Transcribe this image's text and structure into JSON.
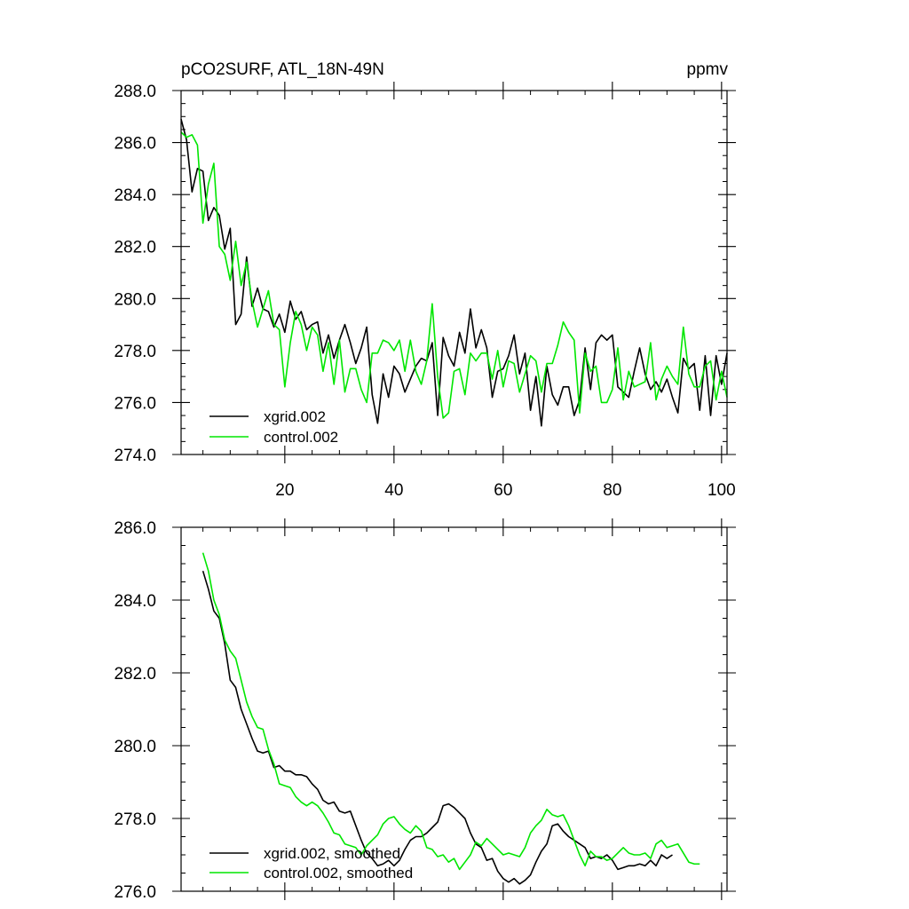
{
  "chart_data": [
    {
      "type": "line",
      "title": "pCO2SURF, ATL_18N-49N",
      "units": "ppmv",
      "xlabel": "",
      "ylabel": "",
      "xlim": [
        1,
        101
      ],
      "ylim": [
        274.0,
        288.0
      ],
      "xticks": [
        20,
        40,
        60,
        80,
        100
      ],
      "yticks": [
        274.0,
        276.0,
        278.0,
        280.0,
        282.0,
        284.0,
        286.0,
        288.0
      ],
      "ytick_labels": [
        "274.0",
        "276.0",
        "278.0",
        "280.0",
        "282.0",
        "284.0",
        "286.0",
        "288.0"
      ],
      "x_start": 1,
      "legend_position": "bottom-left",
      "series": [
        {
          "name": "xgrid.002",
          "color": "#000000",
          "values": [
            286.9,
            286.1,
            284.1,
            285.0,
            284.9,
            283.0,
            283.5,
            283.2,
            281.9,
            282.7,
            279.0,
            279.4,
            281.6,
            279.7,
            280.4,
            279.6,
            279.5,
            278.9,
            279.4,
            278.7,
            279.9,
            279.2,
            279.5,
            278.8,
            279.0,
            279.1,
            277.9,
            278.6,
            277.7,
            278.4,
            279.0,
            278.3,
            277.5,
            278.1,
            278.9,
            276.3,
            275.2,
            277.1,
            276.2,
            277.4,
            277.1,
            276.4,
            276.9,
            277.4,
            277.7,
            277.6,
            278.3,
            275.5,
            278.5,
            277.8,
            277.4,
            278.7,
            277.9,
            279.6,
            278.1,
            278.8,
            278.1,
            276.2,
            277.2,
            277.3,
            277.8,
            278.6,
            277.1,
            277.9,
            275.7,
            277.0,
            275.1,
            277.4,
            276.3,
            275.9,
            276.6,
            276.6,
            275.5,
            276.1,
            278.1,
            276.5,
            278.3,
            278.6,
            278.4,
            278.6,
            276.6,
            276.4,
            276.2,
            277.2,
            278.1,
            277.1,
            276.5,
            276.8,
            276.4,
            276.9,
            276.2,
            275.6,
            277.7,
            277.3,
            277.5,
            275.7,
            277.8,
            275.5,
            277.8,
            276.7,
            277.9
          ]
        },
        {
          "name": "control.002",
          "color": "#00e600",
          "values": [
            286.4,
            286.2,
            286.3,
            285.9,
            282.9,
            284.4,
            285.2,
            282.0,
            281.7,
            280.7,
            282.2,
            280.5,
            281.4,
            279.9,
            278.9,
            279.6,
            280.3,
            279.0,
            278.8,
            276.6,
            278.3,
            279.5,
            279.0,
            278.0,
            278.9,
            278.6,
            277.2,
            278.3,
            276.7,
            278.4,
            276.4,
            277.3,
            277.3,
            276.5,
            276.0,
            277.9,
            277.9,
            278.4,
            278.3,
            278.0,
            278.4,
            277.2,
            278.4,
            277.2,
            276.7,
            277.6,
            279.8,
            277.0,
            275.4,
            275.6,
            277.2,
            277.3,
            276.3,
            277.9,
            277.6,
            277.9,
            277.9,
            276.9,
            278.0,
            276.6,
            277.6,
            277.5,
            276.4,
            277.1,
            277.8,
            277.6,
            276.4,
            277.5,
            277.5,
            278.2,
            279.1,
            278.7,
            278.4,
            275.6,
            277.9,
            277.2,
            277.4,
            276.0,
            276.0,
            276.5,
            278.1,
            276.1,
            277.2,
            276.6,
            276.7,
            276.8,
            278.3,
            276.1,
            276.9,
            277.4,
            277.0,
            276.7,
            278.9,
            277.1,
            276.6,
            276.6,
            277.4,
            277.6,
            276.1,
            277.2,
            276.2
          ]
        }
      ]
    },
    {
      "type": "line",
      "title": "",
      "xlabel": "",
      "ylabel": "",
      "xlim": [
        1,
        101
      ],
      "ylim": [
        276.0,
        286.0
      ],
      "xticks": [
        20,
        40,
        60,
        80,
        100
      ],
      "yticks": [
        276.0,
        278.0,
        280.0,
        282.0,
        284.0,
        286.0
      ],
      "ytick_labels": [
        "276.0",
        "278.0",
        "280.0",
        "282.0",
        "284.0",
        "286.0"
      ],
      "x_start": 5,
      "legend_position": "bottom-left",
      "series": [
        {
          "name": "xgrid.002, smoothed",
          "color": "#000000",
          "values": [
            284.8,
            284.3,
            283.7,
            283.5,
            282.8,
            281.8,
            281.6,
            281.0,
            280.6,
            280.2,
            279.85,
            279.8,
            279.85,
            279.4,
            279.45,
            279.3,
            279.3,
            279.2,
            279.2,
            279.15,
            278.95,
            278.8,
            278.5,
            278.4,
            278.45,
            278.2,
            278.15,
            278.2,
            277.8,
            277.4,
            277.05,
            276.9,
            276.7,
            276.75,
            276.85,
            276.7,
            276.85,
            277.15,
            277.4,
            277.5,
            277.5,
            277.6,
            277.75,
            277.9,
            278.35,
            278.4,
            278.3,
            278.15,
            278.0,
            277.6,
            277.3,
            277.2,
            276.85,
            276.9,
            276.55,
            276.35,
            276.25,
            276.35,
            276.2,
            276.3,
            276.45,
            276.8,
            277.1,
            277.3,
            277.8,
            277.85,
            277.65,
            277.5,
            277.4,
            277.3,
            277.2,
            276.9,
            276.95,
            276.9,
            277.0,
            276.85,
            276.6,
            276.65,
            276.7,
            276.7,
            276.75,
            276.7,
            276.85,
            276.7,
            277.0,
            276.9,
            277.0
          ]
        },
        {
          "name": "control.002, smoothed",
          "color": "#00e600",
          "values": [
            285.3,
            284.8,
            284.0,
            283.6,
            282.9,
            282.6,
            282.4,
            281.8,
            281.2,
            280.8,
            280.5,
            280.45,
            279.9,
            279.5,
            278.95,
            278.9,
            278.85,
            278.6,
            278.45,
            278.35,
            278.45,
            278.35,
            278.15,
            277.9,
            277.6,
            277.55,
            277.3,
            277.25,
            277.2,
            277.0,
            277.25,
            277.4,
            277.55,
            277.85,
            278.0,
            278.05,
            277.85,
            277.7,
            277.6,
            277.8,
            277.65,
            277.2,
            277.15,
            276.95,
            277.0,
            276.8,
            276.9,
            276.6,
            276.8,
            277.0,
            277.35,
            277.25,
            277.45,
            277.3,
            277.15,
            277.0,
            277.05,
            277.0,
            276.95,
            277.2,
            277.6,
            277.8,
            277.95,
            278.25,
            278.1,
            278.05,
            278.1,
            277.8,
            277.4,
            277.0,
            276.7,
            277.1,
            276.95,
            276.95,
            276.85,
            276.9,
            277.05,
            277.2,
            277.05,
            277.0,
            277.0,
            277.05,
            276.9,
            277.3,
            277.4,
            277.2,
            277.25,
            277.3,
            277.05,
            276.8,
            276.75,
            276.75
          ]
        }
      ]
    }
  ]
}
